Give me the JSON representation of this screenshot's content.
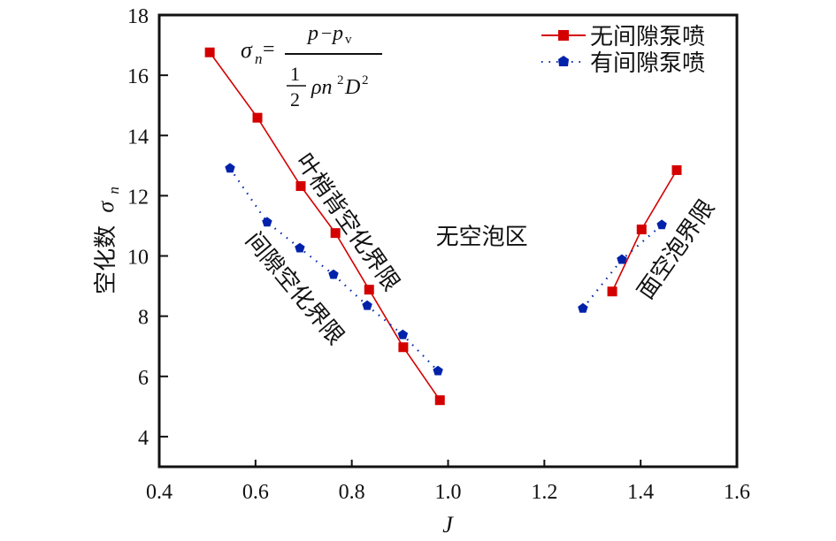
{
  "chart_data": {
    "type": "line",
    "title": "",
    "xlabel": "J",
    "ylabel_text": "空化数",
    "ylabel_symbol": "σ",
    "ylabel_subscript": "n",
    "xlim": [
      0.4,
      1.6
    ],
    "ylim": [
      3,
      18
    ],
    "xticks": [
      0.4,
      0.6,
      0.8,
      1.0,
      1.2,
      1.4,
      1.6
    ],
    "xtick_labels": [
      "0.4",
      "0.6",
      "0.8",
      "1.0",
      "1.2",
      "1.4",
      "1.6"
    ],
    "yticks": [
      4,
      6,
      8,
      10,
      12,
      14,
      16,
      18
    ],
    "ytick_labels": [
      "4",
      "6",
      "8",
      "10",
      "12",
      "14",
      "16",
      "18"
    ],
    "grid": false,
    "legend_position": "top-right",
    "series": [
      {
        "name": "无间隙泵喷",
        "color": "#d40000",
        "line_style": "solid",
        "marker": "square",
        "segments": [
          {
            "x": [
              0.505,
              0.604,
              0.694,
              0.766,
              0.836,
              0.907,
              0.983
            ],
            "y": [
              16.76,
              14.59,
              12.32,
              10.76,
              8.88,
              6.97,
              5.21
            ]
          },
          {
            "x": [
              1.341,
              1.402,
              1.475
            ],
            "y": [
              8.82,
              10.88,
              12.85
            ]
          }
        ]
      },
      {
        "name": "有间隙泵喷",
        "color": "#0022aa",
        "line_style": "dotted",
        "marker": "pentagon",
        "segments": [
          {
            "x": [
              0.547,
              0.624,
              0.692,
              0.762,
              0.832,
              0.906,
              0.979
            ],
            "y": [
              12.91,
              11.12,
              10.26,
              9.38,
              8.35,
              7.38,
              6.18
            ]
          },
          {
            "x": [
              1.28,
              1.361,
              1.444
            ],
            "y": [
              8.26,
              9.88,
              11.03
            ]
          }
        ]
      }
    ],
    "annotations": [
      {
        "id": "tip-back",
        "text": "叶梢背空化界限",
        "x": 0.79,
        "y": 11.1,
        "rotation_deg": 55
      },
      {
        "id": "gap",
        "text": "间隙空化界限",
        "x": 0.68,
        "y": 8.9,
        "rotation_deg": 50
      },
      {
        "id": "no-cavitation",
        "text": "无空泡区",
        "x": 1.07,
        "y": 10.6,
        "rotation_deg": 0
      },
      {
        "id": "face",
        "text": "面空泡界限",
        "x": 1.475,
        "y": 10.2,
        "rotation_deg": -55
      }
    ],
    "formula": {
      "lhs_symbol": "σ",
      "lhs_subscript": "n",
      "equals": "=",
      "numerator_p": "p",
      "numerator_minus": "−",
      "numerator_pv": "p",
      "numerator_pv_sub": "v",
      "denominator_half_num": "1",
      "denominator_half_den": "2",
      "denominator_rest": "ρn",
      "denominator_n_exp": "2",
      "denominator_D": "D",
      "denominator_D_exp": "2"
    }
  }
}
